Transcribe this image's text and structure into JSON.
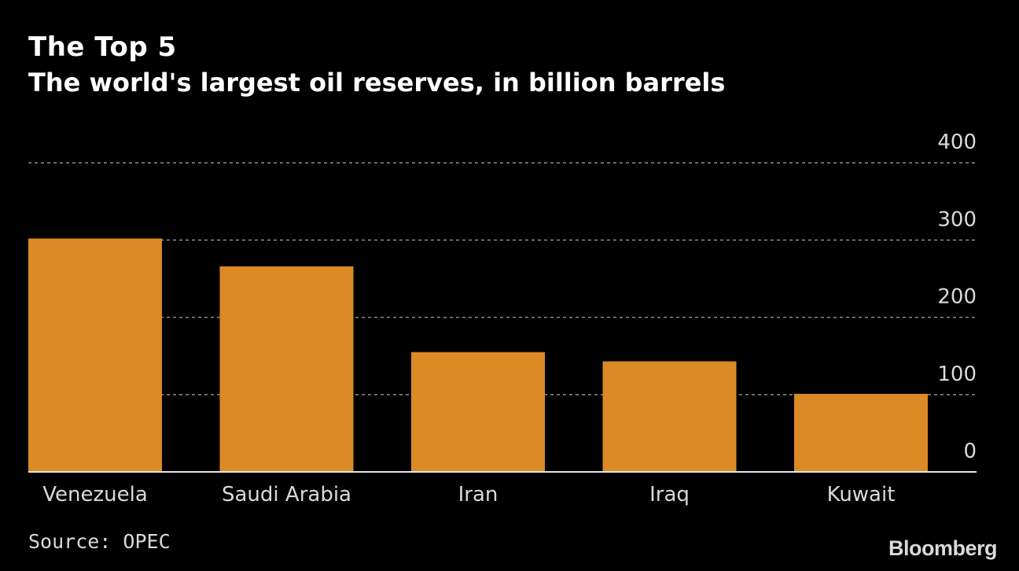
{
  "chart_data": {
    "type": "bar",
    "title": "The Top 5",
    "subtitle": "The world's largest oil reserves, in billion barrels",
    "categories": [
      "Venezuela",
      "Saudi Arabia",
      "Iran",
      "Iraq",
      "Kuwait"
    ],
    "values": [
      302,
      266,
      155,
      143,
      101
    ],
    "ylim": [
      0,
      400
    ],
    "yticks": [
      "0",
      "100",
      "200",
      "300",
      "400"
    ],
    "ytick_values": [
      0,
      100,
      200,
      300,
      400
    ],
    "grid": "dashed horizontal",
    "y_axis_side": "right",
    "bar_color": "#dc8a25",
    "background_color": "#000000",
    "text_color": "#d9d9d9",
    "grid_color": "#8a8a8a"
  },
  "footer": {
    "source": "Source: OPEC",
    "logo": "Bloomberg"
  }
}
